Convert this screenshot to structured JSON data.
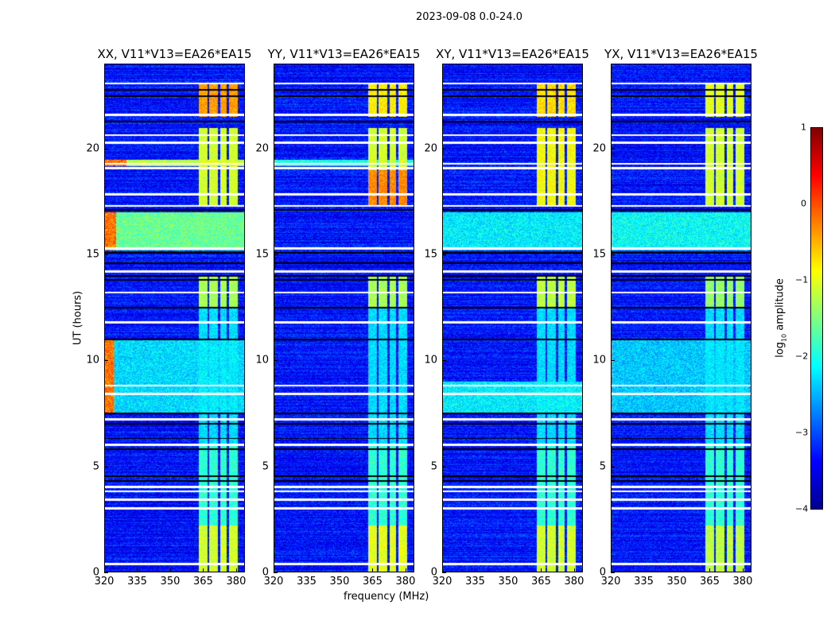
{
  "chart_data": {
    "type": "heatmap",
    "title": "2023-09-08 0.0-24.0",
    "xlabel": "frequency (MHz)",
    "ylabel": "UT (hours)",
    "xlim": [
      320,
      384
    ],
    "ylim": [
      0,
      24
    ],
    "xticks": [
      "320",
      "335",
      "350",
      "365",
      "380"
    ],
    "yticks": [
      "0",
      "5",
      "10",
      "15",
      "20"
    ],
    "colorbar": {
      "label_prefix": "log",
      "label_sub": "10",
      "label_suffix": " amplitude",
      "range": [
        -4,
        1
      ],
      "ticks": [
        "1",
        "0",
        "−1",
        "−2",
        "−3",
        "−4"
      ],
      "colormap": "jet"
    },
    "background_level": -3.3,
    "rfi_band_mhz": [
      363,
      381
    ],
    "rfi_band_gaps_mhz": [
      367.5,
      372.5,
      376.5
    ],
    "flagged_rows_white_hours": [
      0.35,
      3.0,
      3.4,
      3.8,
      4.0,
      6.0,
      7.2,
      8.4,
      8.8,
      11.8,
      13.2,
      14.2,
      15.3,
      17.3,
      17.85,
      19.1,
      19.3,
      20.3,
      20.65,
      21.6,
      23.1
    ],
    "flagged_rows_black_hours": [
      4.3,
      4.5,
      5.8,
      6.3,
      7.0,
      7.5,
      11.0,
      12.5,
      13.8,
      14.0,
      14.6,
      15.1,
      17.1,
      21.3,
      22.5,
      22.8
    ],
    "panels": [
      {
        "title": "XX, V11*V13=EA26*EA15",
        "band_levels": [
          {
            "hours": [
              0,
              2.2
            ],
            "level": -1.1
          },
          {
            "hours": [
              2.2,
              6
            ],
            "level": -1.9
          },
          {
            "hours": [
              6,
              12.5
            ],
            "level": -2.3
          },
          {
            "hours": [
              12.5,
              14
            ],
            "level": -1.3
          },
          {
            "hours": [
              17.3,
              21
            ],
            "level": -1.1
          },
          {
            "hours": [
              21.5,
              23.1
            ],
            "level": -0.4
          }
        ],
        "broadband": [
          {
            "hours": [
              15.2,
              17
            ],
            "level": -1.6,
            "hot_edge_mhz": [
              320,
              325
            ]
          },
          {
            "hours": [
              7.5,
              11
            ],
            "level": -2.3,
            "hot_edge_mhz": [
              320,
              324
            ]
          },
          {
            "hours": [
              19.2,
              19.5
            ],
            "level": -1.2,
            "hot_edge_mhz": [
              320,
              330
            ]
          }
        ]
      },
      {
        "title": "YY, V11*V13=EA26*EA15",
        "band_levels": [
          {
            "hours": [
              0,
              2.2
            ],
            "level": -1.0
          },
          {
            "hours": [
              2.2,
              6
            ],
            "level": -1.9
          },
          {
            "hours": [
              6,
              12.5
            ],
            "level": -2.3
          },
          {
            "hours": [
              12.5,
              14
            ],
            "level": -1.3
          },
          {
            "hours": [
              17.3,
              19
            ],
            "level": -0.3
          },
          {
            "hours": [
              19,
              21
            ],
            "level": -1.1
          },
          {
            "hours": [
              21.5,
              23.1
            ],
            "level": -0.8
          }
        ],
        "broadband": [
          {
            "hours": [
              19.2,
              19.5
            ],
            "level": -2.0,
            "hot_edge_mhz": []
          }
        ]
      },
      {
        "title": "XY, V11*V13=EA26*EA15",
        "band_levels": [
          {
            "hours": [
              0,
              2.2
            ],
            "level": -1.1
          },
          {
            "hours": [
              2.2,
              6
            ],
            "level": -1.9
          },
          {
            "hours": [
              6,
              12.5
            ],
            "level": -2.3
          },
          {
            "hours": [
              12.5,
              14
            ],
            "level": -1.2
          },
          {
            "hours": [
              17.3,
              21
            ],
            "level": -0.9
          },
          {
            "hours": [
              21.5,
              23.1
            ],
            "level": -0.7
          }
        ],
        "broadband": [
          {
            "hours": [
              15.2,
              17
            ],
            "level": -2.2,
            "hot_edge_mhz": []
          },
          {
            "hours": [
              7.5,
              9
            ],
            "level": -2.2,
            "hot_edge_mhz": []
          }
        ]
      },
      {
        "title": "YX, V11*V13=EA26*EA15",
        "band_levels": [
          {
            "hours": [
              0,
              2.2
            ],
            "level": -1.2
          },
          {
            "hours": [
              2.2,
              6
            ],
            "level": -1.9
          },
          {
            "hours": [
              6,
              12.5
            ],
            "level": -2.3
          },
          {
            "hours": [
              12.5,
              14
            ],
            "level": -1.4
          },
          {
            "hours": [
              17.3,
              21
            ],
            "level": -1.1
          },
          {
            "hours": [
              21.5,
              23.1
            ],
            "level": -1.0
          }
        ],
        "broadband": [
          {
            "hours": [
              15.2,
              17
            ],
            "level": -2.1,
            "hot_edge_mhz": []
          },
          {
            "hours": [
              7.5,
              11
            ],
            "level": -2.4,
            "hot_edge_mhz": []
          }
        ]
      }
    ]
  }
}
